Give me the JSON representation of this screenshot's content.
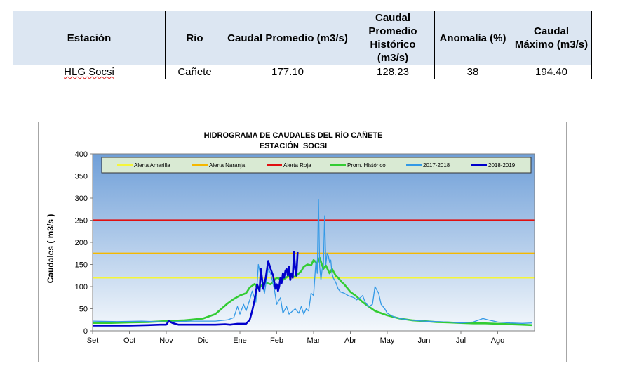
{
  "table": {
    "headers": [
      "Estación",
      "Rio",
      "Caudal Promedio (m3/s)",
      "Caudal Promedio Histórico (m3/s)",
      "Anomalía (%)",
      "Caudal Máximo (m3/s)"
    ],
    "row": [
      "HLG Socsi",
      "Cañete",
      "177.10",
      "128.23",
      "38",
      "194.40"
    ]
  },
  "chart_data": {
    "type": "line",
    "title": "HIDROGRAMA DE CAUDALES DEL RÍO CAÑETE",
    "subtitle": "ESTACIÓN  SOCSI",
    "ylabel": "Caudales ( m3/s )",
    "xlabel": "",
    "ylim": [
      0,
      400
    ],
    "yticks": [
      0,
      50,
      100,
      150,
      200,
      250,
      300,
      350,
      400
    ],
    "xlim": [
      0,
      360
    ],
    "month_ticks": [
      {
        "label": "Set",
        "x": 0
      },
      {
        "label": "Oct",
        "x": 30
      },
      {
        "label": "Nov",
        "x": 60
      },
      {
        "label": "Dic",
        "x": 90
      },
      {
        "label": "Ene",
        "x": 120
      },
      {
        "label": "Feb",
        "x": 150
      },
      {
        "label": "Mar",
        "x": 180
      },
      {
        "label": "Abr",
        "x": 210
      },
      {
        "label": "May",
        "x": 240
      },
      {
        "label": "Jun",
        "x": 270
      },
      {
        "label": "Jul",
        "x": 300
      },
      {
        "label": "Ago",
        "x": 330
      }
    ],
    "legend_placement": "top",
    "thresholds": [
      {
        "name": "Alerta Amarilla",
        "value": 120,
        "color": "#f5f53a"
      },
      {
        "name": "Alerta Naranja",
        "value": 175,
        "color": "#f5b800"
      },
      {
        "name": "Alerta Roja",
        "value": 250,
        "color": "#e01010"
      }
    ],
    "series": [
      {
        "name": "Prom. Histórico",
        "color": "#33cc33",
        "x": [
          0,
          15,
          30,
          45,
          60,
          75,
          90,
          100,
          105,
          110,
          115,
          120,
          125,
          128,
          132,
          135,
          140,
          145,
          150,
          155,
          160,
          165,
          170,
          172,
          175,
          178,
          180,
          183,
          185,
          188,
          190,
          193,
          195,
          198,
          200,
          203,
          205,
          210,
          215,
          220,
          225,
          230,
          240,
          250,
          260,
          270,
          280,
          290,
          300,
          310,
          320,
          330,
          340,
          350,
          358
        ],
        "y": [
          18,
          18,
          19,
          20,
          22,
          24,
          28,
          38,
          50,
          62,
          72,
          80,
          85,
          98,
          106,
          95,
          110,
          105,
          120,
          115,
          125,
          122,
          135,
          145,
          150,
          148,
          160,
          152,
          165,
          140,
          148,
          130,
          140,
          125,
          120,
          110,
          105,
          88,
          78,
          65,
          55,
          45,
          35,
          28,
          24,
          22,
          20,
          19,
          18,
          17,
          17,
          16,
          15,
          14,
          13
        ]
      },
      {
        "name": "2017-2018",
        "color": "#3399e6",
        "x": [
          0,
          20,
          40,
          60,
          80,
          100,
          110,
          115,
          118,
          120,
          123,
          125,
          128,
          130,
          133,
          135,
          138,
          140,
          143,
          145,
          148,
          150,
          153,
          155,
          158,
          160,
          163,
          165,
          168,
          170,
          172,
          174,
          176,
          178,
          180,
          182,
          183,
          184,
          185,
          186,
          187,
          188,
          189,
          190,
          191,
          192,
          193,
          194,
          195,
          196,
          198,
          200,
          202,
          205,
          208,
          210,
          213,
          215,
          218,
          220,
          222,
          225,
          228,
          230,
          233,
          235,
          238,
          240,
          245,
          250,
          260,
          270,
          280,
          290,
          300,
          310,
          318,
          322,
          330,
          340,
          350,
          358
        ],
        "y": [
          22,
          21,
          22,
          20,
          22,
          22,
          25,
          30,
          55,
          38,
          60,
          45,
          70,
          90,
          65,
          150,
          110,
          85,
          140,
          130,
          95,
          60,
          75,
          40,
          55,
          38,
          45,
          50,
          40,
          55,
          38,
          50,
          45,
          85,
          80,
          160,
          130,
          296,
          145,
          115,
          140,
          145,
          260,
          150,
          175,
          170,
          155,
          160,
          130,
          120,
          110,
          95,
          88,
          85,
          80,
          78,
          75,
          70,
          75,
          80,
          65,
          55,
          60,
          100,
          85,
          60,
          50,
          40,
          32,
          28,
          24,
          22,
          21,
          20,
          18,
          20,
          28,
          25,
          20,
          18,
          17,
          18
        ]
      },
      {
        "name": "2018-2019",
        "color": "#0000cc",
        "x": [
          0,
          15,
          30,
          45,
          55,
          60,
          62,
          65,
          70,
          80,
          90,
          100,
          108,
          112,
          118,
          125,
          128,
          130,
          132,
          134,
          136,
          137,
          139,
          141,
          143,
          145,
          147,
          149,
          150,
          151,
          152,
          153,
          154,
          155,
          156,
          157,
          158,
          159,
          160,
          161,
          162,
          163,
          164,
          165,
          166,
          167
        ],
        "y": [
          12,
          12,
          12,
          13,
          14,
          14,
          22,
          18,
          14,
          14,
          14,
          14,
          15,
          14,
          16,
          16,
          25,
          45,
          70,
          105,
          90,
          140,
          95,
          120,
          158,
          140,
          125,
          95,
          105,
          90,
          100,
          120,
          108,
          130,
          120,
          135,
          140,
          125,
          145,
          115,
          130,
          120,
          178,
          140,
          125,
          178
        ]
      }
    ]
  }
}
